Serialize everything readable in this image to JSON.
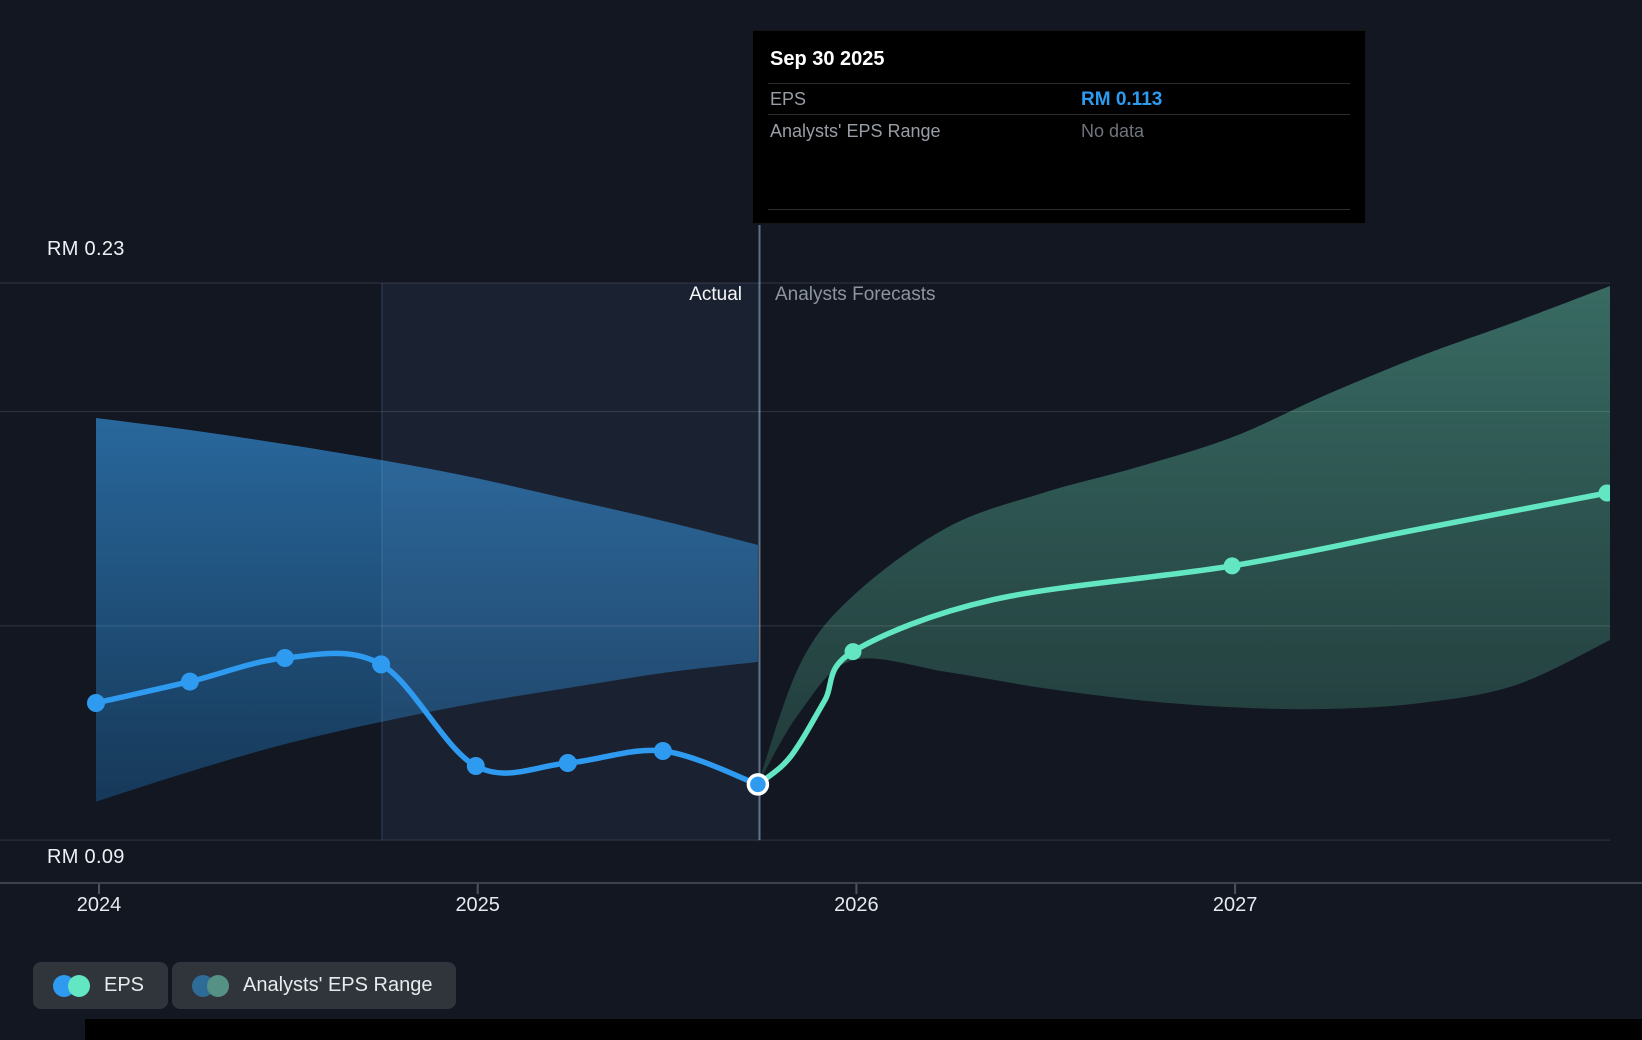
{
  "tooltip": {
    "date": "Sep 30 2025",
    "rows": [
      {
        "label": "EPS",
        "value": "RM 0.113"
      },
      {
        "label": "Analysts' EPS Range",
        "value": "No data"
      }
    ]
  },
  "labels": {
    "actual": "Actual",
    "forecast": "Analysts Forecasts"
  },
  "legend": [
    {
      "label": "EPS",
      "colors": [
        "#2e9bf0",
        "#63e6c2"
      ]
    },
    {
      "label": "Analysts' EPS Range",
      "colors": [
        "#2e6c97",
        "#559185"
      ]
    }
  ],
  "colors": {
    "background": "#121722",
    "eps_actual_line": "#2e9bf0",
    "eps_forecast_line": "#63e6c2",
    "tooltip_eps_value": "#2e9bf0",
    "actual_band_fill": [
      "#2a6ca3",
      "#173f63"
    ],
    "forecast_band_fill": [
      "#3a6f66",
      "#223e3d"
    ],
    "gridline": "rgba(205,215,230,0.16)",
    "axis_line": "#3c434e",
    "divider_line": "rgba(170,205,235,0.5)",
    "highlight_fill": "rgba(108,160,216,0.09)"
  },
  "chart_data": {
    "type": "line",
    "title": "EPS actual vs analysts forecast (RM)",
    "currency": "RM",
    "x_ticks": [
      {
        "label": "2024",
        "t": 2024
      },
      {
        "label": "2025",
        "t": 2025
      },
      {
        "label": "2026",
        "t": 2026
      },
      {
        "label": "2027",
        "t": 2027
      }
    ],
    "y_axis": {
      "top_label": "RM 0.23",
      "bottom_label": "RM 0.09",
      "top_value": 0.23,
      "bottom_value": 0.09,
      "gridline_values": [
        0.23,
        0.2,
        0.15,
        0.1
      ],
      "axis_value": 0.09
    },
    "divider_t": 2025.744,
    "divider_date": "Sep 30 2025",
    "highlight_region": {
      "from": 2024.747,
      "to": 2025.744
    },
    "series": {
      "actual_eps": {
        "name": "EPS",
        "points": [
          {
            "t": 2023.992,
            "v": 0.132
          },
          {
            "t": 2024.24,
            "v": 0.137
          },
          {
            "t": 2024.491,
            "v": 0.1425
          },
          {
            "t": 2024.745,
            "v": 0.141
          },
          {
            "t": 2024.995,
            "v": 0.1173
          },
          {
            "t": 2025.238,
            "v": 0.118
          },
          {
            "t": 2025.489,
            "v": 0.1208
          },
          {
            "t": 2025.74,
            "v": 0.113
          }
        ]
      },
      "forecast_eps": {
        "name": "EPS (analysts forecast)",
        "curve": [
          {
            "t": 2025.74,
            "v": 0.113
          },
          {
            "t": 2025.806,
            "v": 0.1175
          },
          {
            "t": 2025.851,
            "v": 0.1227
          },
          {
            "t": 2025.917,
            "v": 0.1327
          },
          {
            "t": 2025.991,
            "v": 0.144
          },
          {
            "t": 2026.361,
            "v": 0.1561
          },
          {
            "t": 2026.992,
            "v": 0.164
          },
          {
            "t": 2027.488,
            "v": 0.1726
          },
          {
            "t": 2027.982,
            "v": 0.181
          }
        ],
        "markers": [
          {
            "t": 2025.991,
            "v": 0.144
          },
          {
            "t": 2026.992,
            "v": 0.164
          },
          {
            "t": 2027.982,
            "v": 0.181
          }
        ]
      },
      "actual_range": {
        "name": "Analysts' EPS Range (historical)",
        "top": [
          {
            "t": 2023.992,
            "v": 0.1985
          },
          {
            "t": 2024.24,
            "v": 0.1957
          },
          {
            "t": 2024.491,
            "v": 0.1924
          },
          {
            "t": 2024.745,
            "v": 0.1887
          },
          {
            "t": 2024.995,
            "v": 0.1845
          },
          {
            "t": 2025.238,
            "v": 0.1796
          },
          {
            "t": 2025.489,
            "v": 0.1745
          },
          {
            "t": 2025.74,
            "v": 0.1689
          }
        ],
        "bottom": [
          {
            "t": 2023.992,
            "v": 0.109
          },
          {
            "t": 2024.24,
            "v": 0.116
          },
          {
            "t": 2024.491,
            "v": 0.1224
          },
          {
            "t": 2024.745,
            "v": 0.1276
          },
          {
            "t": 2024.995,
            "v": 0.132
          },
          {
            "t": 2025.238,
            "v": 0.1355
          },
          {
            "t": 2025.489,
            "v": 0.139
          },
          {
            "t": 2025.74,
            "v": 0.1416
          }
        ]
      },
      "forecast_range": {
        "name": "Analysts' EPS Range (forecast)",
        "top": [
          {
            "t": 2025.74,
            "v": 0.113
          },
          {
            "t": 2025.851,
            "v": 0.141
          },
          {
            "t": 2025.991,
            "v": 0.157
          },
          {
            "t": 2026.241,
            "v": 0.173
          },
          {
            "t": 2026.492,
            "v": 0.181
          },
          {
            "t": 2026.741,
            "v": 0.187
          },
          {
            "t": 2026.992,
            "v": 0.194
          },
          {
            "t": 2027.243,
            "v": 0.204
          },
          {
            "t": 2027.491,
            "v": 0.213
          },
          {
            "t": 2027.742,
            "v": 0.221
          },
          {
            "t": 2027.99,
            "v": 0.2293
          }
        ],
        "bottom": [
          {
            "t": 2025.74,
            "v": 0.113
          },
          {
            "t": 2025.851,
            "v": 0.1299
          },
          {
            "t": 2025.991,
            "v": 0.142
          },
          {
            "t": 2026.241,
            "v": 0.1392
          },
          {
            "t": 2026.492,
            "v": 0.1355
          },
          {
            "t": 2026.741,
            "v": 0.1327
          },
          {
            "t": 2026.992,
            "v": 0.131
          },
          {
            "t": 2027.243,
            "v": 0.1306
          },
          {
            "t": 2027.491,
            "v": 0.132
          },
          {
            "t": 2027.742,
            "v": 0.1362
          },
          {
            "t": 2027.99,
            "v": 0.1467
          }
        ]
      }
    }
  }
}
